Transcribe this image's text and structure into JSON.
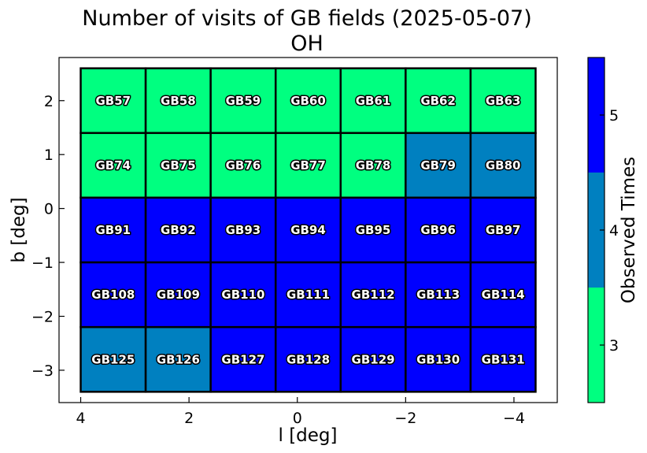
{
  "chart_data": {
    "type": "heatmap",
    "title": "Number of visits of GB fields (2025-05-07)",
    "subtitle": "OH",
    "xlabel": "l [deg]",
    "ylabel": "b [deg]",
    "colorbar_label": "Observed Times",
    "x_ticks": [
      "4",
      "2",
      "0",
      "−2",
      "−4"
    ],
    "y_ticks": [
      "2",
      "1",
      "0",
      "−1",
      "−2",
      "−3"
    ],
    "colorbar_ticks": [
      "3",
      "4",
      "5"
    ],
    "xlim": [
      4.4,
      -4.8
    ],
    "ylim": [
      -3.6,
      2.8
    ],
    "colors": {
      "3": "#00ff80",
      "4": "#0080c0",
      "5": "#0000ff"
    },
    "colorbar_range": [
      2.5,
      5.5
    ],
    "cells": [
      {
        "name": "GB57",
        "l": 3.4,
        "b": 2.0,
        "count": 3
      },
      {
        "name": "GB58",
        "l": 2.2,
        "b": 2.0,
        "count": 3
      },
      {
        "name": "GB59",
        "l": 1.0,
        "b": 2.0,
        "count": 3
      },
      {
        "name": "GB60",
        "l": -0.2,
        "b": 2.0,
        "count": 3
      },
      {
        "name": "GB61",
        "l": -1.4,
        "b": 2.0,
        "count": 3
      },
      {
        "name": "GB62",
        "l": -2.6,
        "b": 2.0,
        "count": 3
      },
      {
        "name": "GB63",
        "l": -3.8,
        "b": 2.0,
        "count": 3
      },
      {
        "name": "GB74",
        "l": 3.4,
        "b": 0.8,
        "count": 3
      },
      {
        "name": "GB75",
        "l": 2.2,
        "b": 0.8,
        "count": 3
      },
      {
        "name": "GB76",
        "l": 1.0,
        "b": 0.8,
        "count": 3
      },
      {
        "name": "GB77",
        "l": -0.2,
        "b": 0.8,
        "count": 3
      },
      {
        "name": "GB78",
        "l": -1.4,
        "b": 0.8,
        "count": 3
      },
      {
        "name": "GB79",
        "l": -2.6,
        "b": 0.8,
        "count": 4
      },
      {
        "name": "GB80",
        "l": -3.8,
        "b": 0.8,
        "count": 4
      },
      {
        "name": "GB91",
        "l": 3.4,
        "b": -0.4,
        "count": 5
      },
      {
        "name": "GB92",
        "l": 2.2,
        "b": -0.4,
        "count": 5
      },
      {
        "name": "GB93",
        "l": 1.0,
        "b": -0.4,
        "count": 5
      },
      {
        "name": "GB94",
        "l": -0.2,
        "b": -0.4,
        "count": 5
      },
      {
        "name": "GB95",
        "l": -1.4,
        "b": -0.4,
        "count": 5
      },
      {
        "name": "GB96",
        "l": -2.6,
        "b": -0.4,
        "count": 5
      },
      {
        "name": "GB97",
        "l": -3.8,
        "b": -0.4,
        "count": 5
      },
      {
        "name": "GB108",
        "l": 3.4,
        "b": -1.6,
        "count": 5
      },
      {
        "name": "GB109",
        "l": 2.2,
        "b": -1.6,
        "count": 5
      },
      {
        "name": "GB110",
        "l": 1.0,
        "b": -1.6,
        "count": 5
      },
      {
        "name": "GB111",
        "l": -0.2,
        "b": -1.6,
        "count": 5
      },
      {
        "name": "GB112",
        "l": -1.4,
        "b": -1.6,
        "count": 5
      },
      {
        "name": "GB113",
        "l": -2.6,
        "b": -1.6,
        "count": 5
      },
      {
        "name": "GB114",
        "l": -3.8,
        "b": -1.6,
        "count": 5
      },
      {
        "name": "GB125",
        "l": 3.4,
        "b": -2.8,
        "count": 4
      },
      {
        "name": "GB126",
        "l": 2.2,
        "b": -2.8,
        "count": 4
      },
      {
        "name": "GB127",
        "l": 1.0,
        "b": -2.8,
        "count": 5
      },
      {
        "name": "GB128",
        "l": -0.2,
        "b": -2.8,
        "count": 5
      },
      {
        "name": "GB129",
        "l": -1.4,
        "b": -2.8,
        "count": 5
      },
      {
        "name": "GB130",
        "l": -2.6,
        "b": -2.8,
        "count": 5
      },
      {
        "name": "GB131",
        "l": -3.8,
        "b": -2.8,
        "count": 5
      }
    ],
    "cell_size_deg": 1.2,
    "grid": false,
    "legend": "colorbar-right"
  }
}
